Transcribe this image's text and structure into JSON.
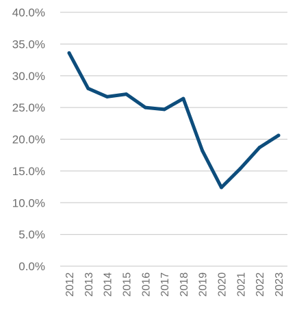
{
  "chart_data": {
    "type": "line",
    "title": "",
    "xlabel": "",
    "ylabel": "",
    "x": [
      "2012",
      "2013",
      "2014",
      "2015",
      "2016",
      "2017",
      "2018",
      "2019",
      "2020",
      "2021",
      "2022",
      "2023"
    ],
    "series": [
      {
        "values": [
          33.6,
          28.0,
          26.7,
          27.1,
          25.0,
          24.7,
          26.4,
          18.2,
          12.4,
          15.4,
          18.7,
          20.6
        ],
        "color": "#0d4d7c"
      }
    ],
    "ylim": [
      0,
      40
    ],
    "yticks": [
      0,
      5,
      10,
      15,
      20,
      25,
      30,
      35,
      40
    ],
    "ytick_labels": [
      "0.0%",
      "5.0%",
      "10.0%",
      "15.0%",
      "20.0%",
      "25.0%",
      "30.0%",
      "35.0%",
      "40.0%"
    ],
    "grid": true,
    "legend": "none"
  }
}
